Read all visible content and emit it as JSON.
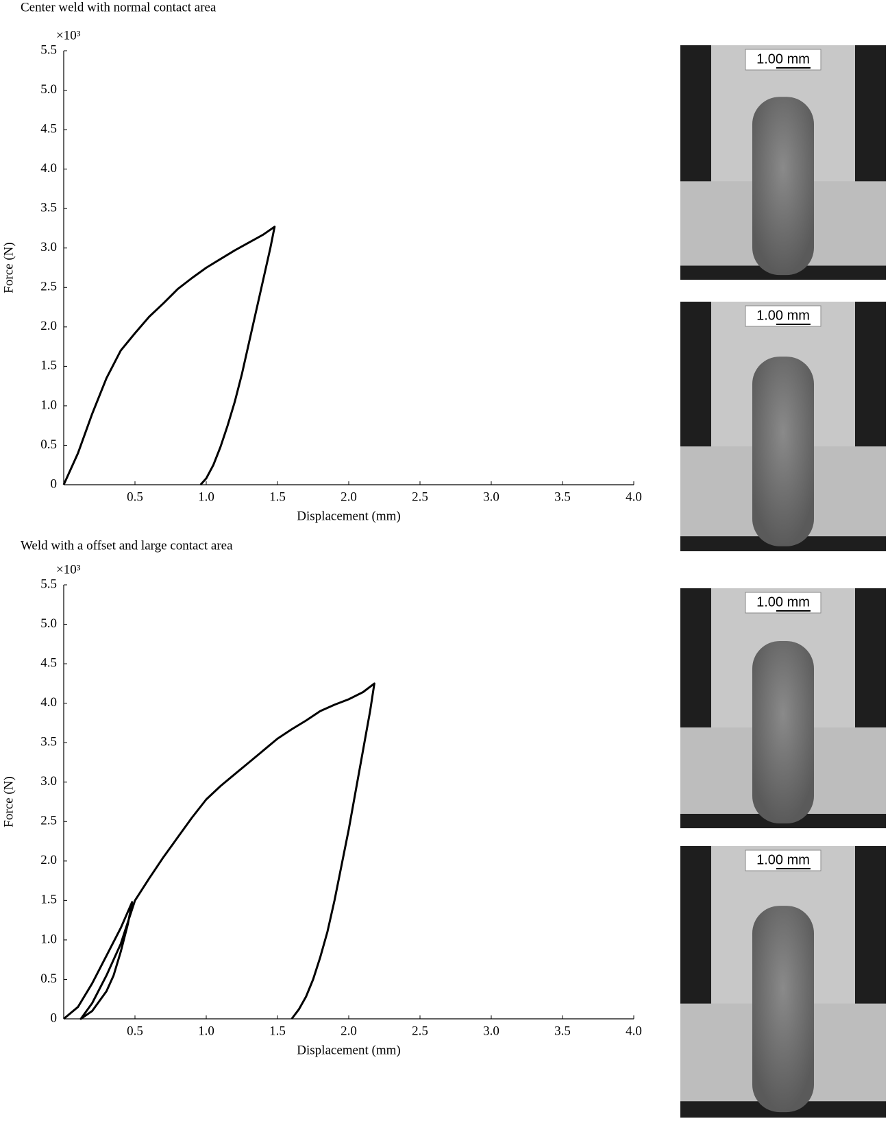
{
  "chart_data": [
    {
      "type": "line",
      "title": "Center weld with normal contact area",
      "x_label": "Displacement (mm)",
      "y_label": "Force (N)",
      "y_multiplier": "×10³",
      "xlim": [
        0,
        4
      ],
      "ylim": [
        0,
        5.5
      ],
      "color": "#000000",
      "xticks": [
        0.5,
        {
          "value": 1,
          "label": "1.0"
        },
        1.5,
        {
          "value": 2,
          "label": "2.0"
        },
        2.5,
        {
          "value": 3,
          "label": "3.0"
        },
        3.5,
        {
          "value": 4,
          "label": "4.0"
        }
      ],
      "yticks": [
        0,
        0.5,
        {
          "value": 1,
          "label": "1.0"
        },
        1.5,
        {
          "value": 2,
          "label": "2.0"
        },
        2.5,
        {
          "value": 3,
          "label": "3.0"
        },
        3.5,
        {
          "value": 4,
          "label": "4.0"
        },
        4.5,
        {
          "value": 5,
          "label": "5.0"
        },
        5.5
      ],
      "x": [
        0,
        0.1,
        0.2,
        0.3,
        0.4,
        0.5,
        0.6,
        0.7,
        0.8,
        0.9,
        1.0,
        1.1,
        1.2,
        1.3,
        1.4,
        1.48,
        1.45,
        1.4,
        1.35,
        1.3,
        1.25,
        1.2,
        1.15,
        1.1,
        1.05,
        1.0,
        0.96
      ],
      "values": [
        0,
        0.4,
        0.9,
        1.35,
        1.7,
        1.92,
        2.13,
        2.3,
        2.48,
        2.62,
        2.75,
        2.86,
        2.97,
        3.07,
        3.17,
        3.27,
        3.0,
        2.6,
        2.2,
        1.8,
        1.4,
        1.05,
        0.75,
        0.48,
        0.25,
        0.08,
        0
      ]
    },
    {
      "type": "line",
      "title": "Weld with a offset and large contact area",
      "x_label": "Displacement (mm)",
      "y_label": "Force (N)",
      "y_multiplier": "×10³",
      "xlim": [
        0,
        4
      ],
      "ylim": [
        0,
        5.5
      ],
      "color": "#000000",
      "xticks": [
        0.5,
        {
          "value": 1,
          "label": "1.0"
        },
        1.5,
        {
          "value": 2,
          "label": "2.0"
        },
        2.5,
        {
          "value": 3,
          "label": "3.0"
        },
        3.5,
        {
          "value": 4,
          "label": "4.0"
        }
      ],
      "yticks": [
        0,
        0.5,
        {
          "value": 1,
          "label": "1.0"
        },
        1.5,
        {
          "value": 2,
          "label": "2.0"
        },
        2.5,
        {
          "value": 3,
          "label": "3.0"
        },
        3.5,
        {
          "value": 4,
          "label": "4.0"
        },
        4.5,
        {
          "value": 5,
          "label": "5.0"
        },
        5.5
      ],
      "x": [
        0,
        0.1,
        0.2,
        0.3,
        0.4,
        0.48,
        0.45,
        0.4,
        0.35,
        0.3,
        0.2,
        0.12,
        0.2,
        0.3,
        0.4,
        0.5,
        0.6,
        0.7,
        0.8,
        0.9,
        1.0,
        1.1,
        1.2,
        1.3,
        1.4,
        1.5,
        1.6,
        1.7,
        1.8,
        1.9,
        2.0,
        2.1,
        2.18,
        2.15,
        2.1,
        2.05,
        2.0,
        1.95,
        1.9,
        1.85,
        1.8,
        1.75,
        1.7,
        1.65,
        1.6
      ],
      "values": [
        0,
        0.15,
        0.45,
        0.8,
        1.15,
        1.48,
        1.2,
        0.85,
        0.55,
        0.35,
        0.1,
        0,
        0.2,
        0.55,
        0.95,
        1.5,
        1.78,
        2.05,
        2.3,
        2.55,
        2.78,
        2.95,
        3.1,
        3.25,
        3.4,
        3.55,
        3.67,
        3.78,
        3.9,
        3.98,
        4.05,
        4.14,
        4.25,
        3.9,
        3.4,
        2.9,
        2.4,
        1.95,
        1.5,
        1.1,
        0.78,
        0.5,
        0.28,
        0.12,
        0
      ]
    }
  ],
  "micrographs": [
    {
      "scale_label": "1.00 mm"
    },
    {
      "scale_label": "1.00 mm"
    },
    {
      "scale_label": "1.00 mm"
    },
    {
      "scale_label": "1.00 mm"
    }
  ]
}
